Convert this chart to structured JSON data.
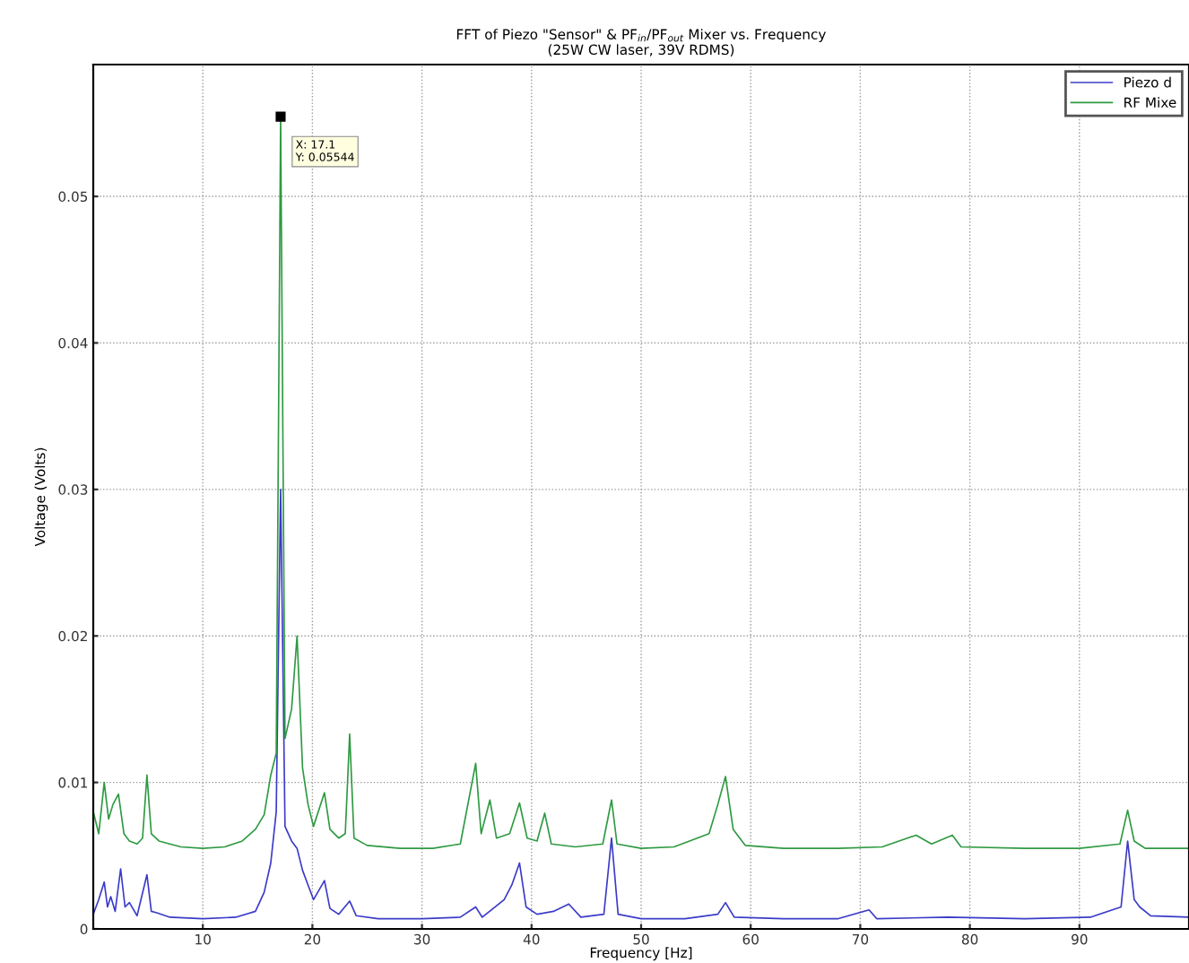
{
  "chart_data": {
    "type": "line",
    "title": "FFT of Piezo \"Sensor\" & PF$_{in}$/PF$_{out}$ Mixer vs. Frequency",
    "subtitle": "(25W CW laser, 39V RDMS)",
    "xlabel": "Frequency [Hz]",
    "ylabel": "Voltage (Volts)",
    "xlim": [
      0,
      100
    ],
    "xticks": [
      10,
      20,
      30,
      40,
      50,
      60,
      70,
      80,
      90
    ],
    "ylim": [
      0,
      0.059
    ],
    "yticks": [
      0,
      0.01,
      0.02,
      0.03,
      0.04,
      0.05
    ],
    "grid": true,
    "legend": "top right",
    "marker": "none",
    "line_style": "solid",
    "annotations": [
      {
        "text": "X: 17.1\nY: 0.05544",
        "x": 17.1,
        "y": 0.05544
      }
    ],
    "series": [
      {
        "name": "Piezo d",
        "color": "#3b3bc8",
        "x": [
          0,
          0.5,
          1.0,
          1.3,
          1.6,
          2.0,
          2.5,
          2.9,
          3.3,
          4.0,
          4.9,
          5.3,
          5.8,
          7,
          10,
          13,
          14.8,
          15.6,
          16.2,
          16.7,
          17.1,
          17.5,
          18.1,
          18.6,
          19.1,
          19.6,
          20.1,
          21.1,
          21.6,
          22.4,
          23.4,
          24,
          26,
          30,
          33.5,
          34.9,
          35.5,
          37.5,
          38.2,
          38.9,
          39.5,
          40.5,
          42,
          43.4,
          44.5,
          46.6,
          47.3,
          47.9,
          50,
          54,
          57.0,
          57.7,
          58.5,
          63,
          68,
          70.8,
          71.5,
          78,
          85,
          91,
          93.8,
          94.4,
          95.0,
          95.5,
          96.5,
          100
        ],
        "values": [
          0.001,
          0.002,
          0.0032,
          0.0015,
          0.0022,
          0.0012,
          0.0041,
          0.0015,
          0.0018,
          0.0009,
          0.0037,
          0.0012,
          0.0011,
          0.0008,
          0.0007,
          0.0008,
          0.0012,
          0.0025,
          0.0045,
          0.008,
          0.03,
          0.007,
          0.006,
          0.0055,
          0.004,
          0.003,
          0.002,
          0.0033,
          0.0014,
          0.001,
          0.0019,
          0.0009,
          0.0007,
          0.0007,
          0.0008,
          0.0015,
          0.0008,
          0.002,
          0.003,
          0.0045,
          0.0015,
          0.001,
          0.0012,
          0.0017,
          0.0008,
          0.001,
          0.0062,
          0.001,
          0.0007,
          0.0007,
          0.001,
          0.0018,
          0.0008,
          0.0007,
          0.0007,
          0.0013,
          0.0007,
          0.0008,
          0.0007,
          0.0008,
          0.0015,
          0.006,
          0.002,
          0.0015,
          0.0009,
          0.0008
        ]
      },
      {
        "name": "RF Mixe",
        "color": "#2f9a42",
        "x": [
          0,
          0.5,
          1.0,
          1.4,
          1.8,
          2.3,
          2.8,
          3.3,
          4.0,
          4.5,
          4.9,
          5.3,
          6,
          8,
          10,
          12,
          13.6,
          14.8,
          15.6,
          16.2,
          16.7,
          17.1,
          17.5,
          18.1,
          18.6,
          19.1,
          19.6,
          20.1,
          21.1,
          21.6,
          22.4,
          23.0,
          23.4,
          23.8,
          25,
          28,
          31,
          33.5,
          34.9,
          35.4,
          36.2,
          36.8,
          38.0,
          38.9,
          39.6,
          40.5,
          41.2,
          41.8,
          44,
          46.5,
          47.3,
          47.8,
          50,
          53,
          56.2,
          57.0,
          57.7,
          58.4,
          59.5,
          63,
          68,
          72,
          75.1,
          76.5,
          78.4,
          79.2,
          85,
          90,
          93.7,
          94.4,
          95.0,
          96,
          100
        ],
        "values": [
          0.008,
          0.0065,
          0.01,
          0.0075,
          0.0085,
          0.0092,
          0.0065,
          0.006,
          0.0058,
          0.0062,
          0.0105,
          0.0065,
          0.006,
          0.0056,
          0.0055,
          0.0056,
          0.006,
          0.0068,
          0.0078,
          0.0105,
          0.012,
          0.05544,
          0.013,
          0.015,
          0.02,
          0.011,
          0.0085,
          0.007,
          0.0093,
          0.0068,
          0.0062,
          0.0065,
          0.0133,
          0.0062,
          0.0057,
          0.0055,
          0.0055,
          0.0058,
          0.0113,
          0.0065,
          0.0088,
          0.0062,
          0.0065,
          0.0086,
          0.0062,
          0.006,
          0.0079,
          0.0058,
          0.0056,
          0.0058,
          0.0088,
          0.0058,
          0.0055,
          0.0056,
          0.0065,
          0.0085,
          0.0104,
          0.0068,
          0.0057,
          0.0055,
          0.0055,
          0.0056,
          0.0064,
          0.0058,
          0.0064,
          0.0056,
          0.0055,
          0.0055,
          0.0058,
          0.0081,
          0.006,
          0.0055,
          0.0055
        ]
      }
    ]
  }
}
